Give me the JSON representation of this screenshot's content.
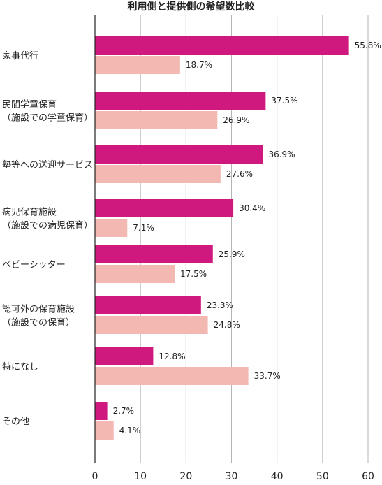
{
  "chart_data": {
    "type": "bar",
    "orientation": "horizontal",
    "title": "利用側と提供側の希望数比較",
    "categories": [
      [
        "家事代行"
      ],
      [
        "民間学童保育",
        "（施設での学童保育）"
      ],
      [
        "塾等への送迎サービス"
      ],
      [
        "病児保育施設",
        "（施設での病児保育）"
      ],
      [
        "ベビーシッター"
      ],
      [
        "認可外の保育施設",
        "（施設での保育）"
      ],
      [
        "特になし"
      ],
      [
        "その他"
      ]
    ],
    "series": [
      {
        "values": [
          55.8,
          37.5,
          36.9,
          30.4,
          25.9,
          23.3,
          12.8,
          2.7
        ],
        "labels": [
          "55.8%",
          "37.5%",
          "36.9%",
          "30.4%",
          "25.9%",
          "23.3%",
          "12.8%",
          "2.7%"
        ],
        "color": "#d0197f"
      },
      {
        "values": [
          18.7,
          26.9,
          27.6,
          7.1,
          17.5,
          24.8,
          33.7,
          4.1
        ],
        "labels": [
          "18.7%",
          "26.9%",
          "27.6%",
          "7.1%",
          "17.5%",
          "24.8%",
          "33.7%",
          "4.1%"
        ],
        "color": "#f4b8b2"
      }
    ],
    "xlim": [
      0,
      60
    ],
    "xticks": [
      "0",
      "10",
      "20",
      "30",
      "40",
      "50",
      "60"
    ],
    "grid": true,
    "gridColor": "#b5b5b5"
  }
}
